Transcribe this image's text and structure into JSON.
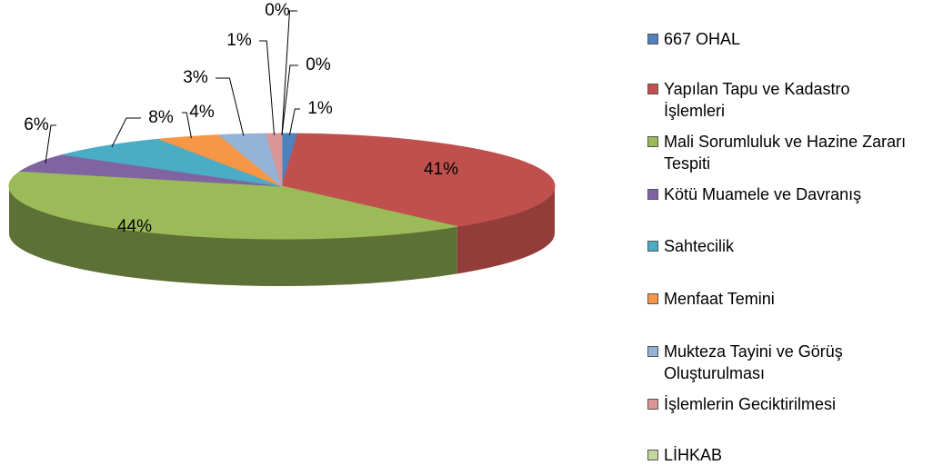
{
  "chart_data": {
    "type": "pie3d",
    "categories": [
      "667 OHAL",
      "Yapılan Tapu ve Kadastro İşlemleri",
      "Mali Sorumluluk ve Hazine Zararı Tespiti",
      "Kötü Muamele ve Davranış",
      "Sahtecilik",
      "Menfaat Temini",
      "Mukteza Tayini ve Görüş Oluşturulması",
      "İşlemlerin Geciktirilmesi",
      "LİHKAB",
      null
    ],
    "values": [
      1,
      41,
      44,
      6,
      8,
      4,
      3,
      1,
      0,
      0
    ],
    "colors": [
      "#4f81bd",
      "#c0504d",
      "#9bbb59",
      "#8064a2",
      "#4bacc6",
      "#f79646",
      "#95b3d7",
      "#d99694",
      "#c3d69b",
      "#b3a2c7"
    ],
    "value_labels": [
      "1%",
      "41%",
      "44%",
      "6%",
      "8%",
      "4%",
      "3%",
      "1%",
      "0%",
      "0%"
    ],
    "legend": "right"
  }
}
